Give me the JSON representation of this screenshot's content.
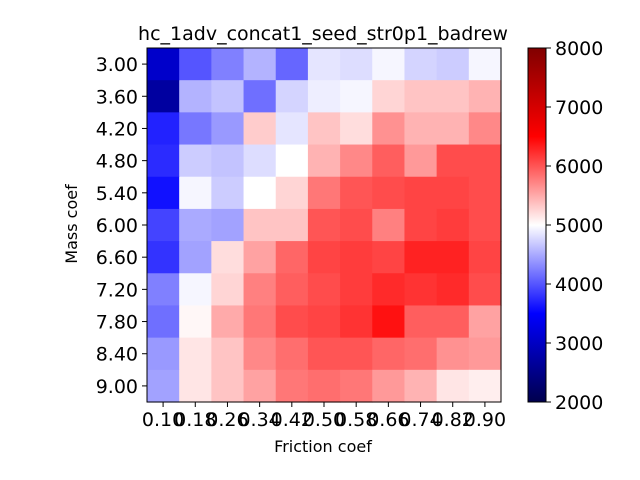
{
  "chart_data": {
    "type": "heatmap",
    "title": "hc_1adv_concat1_seed_str0p1_badrew",
    "xlabel": "Friction coef",
    "ylabel": "Mass coef",
    "x_ticks": [
      "0.10",
      "0.18",
      "0.26",
      "0.34",
      "0.42",
      "0.50",
      "0.58",
      "0.66",
      "0.74",
      "0.82",
      "0.90"
    ],
    "y_ticks": [
      "3.00",
      "3.60",
      "4.20",
      "4.80",
      "5.40",
      "6.00",
      "6.60",
      "7.20",
      "7.80",
      "8.40",
      "9.00"
    ],
    "colorbar": {
      "min": 2000,
      "max": 8000,
      "ticks": [
        "2000",
        "3000",
        "4000",
        "5000",
        "6000",
        "7000",
        "8000"
      ],
      "colormap": "seismic"
    },
    "values": [
      [
        3050,
        4000,
        4250,
        4550,
        4100,
        4850,
        4800,
        4950,
        4750,
        4700,
        4950
      ],
      [
        2700,
        4550,
        4650,
        4150,
        4750,
        4900,
        4950,
        5250,
        5350,
        5350,
        5450
      ],
      [
        3700,
        4200,
        4400,
        5300,
        4850,
        5350,
        5200,
        5650,
        5450,
        5450,
        5700
      ],
      [
        3750,
        4700,
        4650,
        4800,
        5000,
        5450,
        5700,
        5950,
        5600,
        6050,
        6050
      ],
      [
        3600,
        4950,
        4700,
        5000,
        5250,
        5800,
        6000,
        6050,
        6100,
        6100,
        6050
      ],
      [
        3900,
        4500,
        4450,
        5350,
        5350,
        6000,
        6050,
        5750,
        6100,
        6150,
        6050
      ],
      [
        3800,
        4450,
        5200,
        5550,
        5900,
        6100,
        6150,
        6100,
        6300,
        6300,
        6100
      ],
      [
        4250,
        4950,
        5250,
        5750,
        5950,
        6050,
        6150,
        6250,
        6200,
        6250,
        6050
      ],
      [
        4150,
        5050,
        5500,
        5800,
        6050,
        6100,
        6200,
        6400,
        5950,
        5950,
        5550
      ],
      [
        4400,
        5150,
        5350,
        5700,
        5850,
        6000,
        6000,
        5900,
        5850,
        5650,
        5600
      ],
      [
        4450,
        5150,
        5350,
        5550,
        5800,
        5850,
        5800,
        5600,
        5450,
        5150,
        5100
      ]
    ]
  }
}
